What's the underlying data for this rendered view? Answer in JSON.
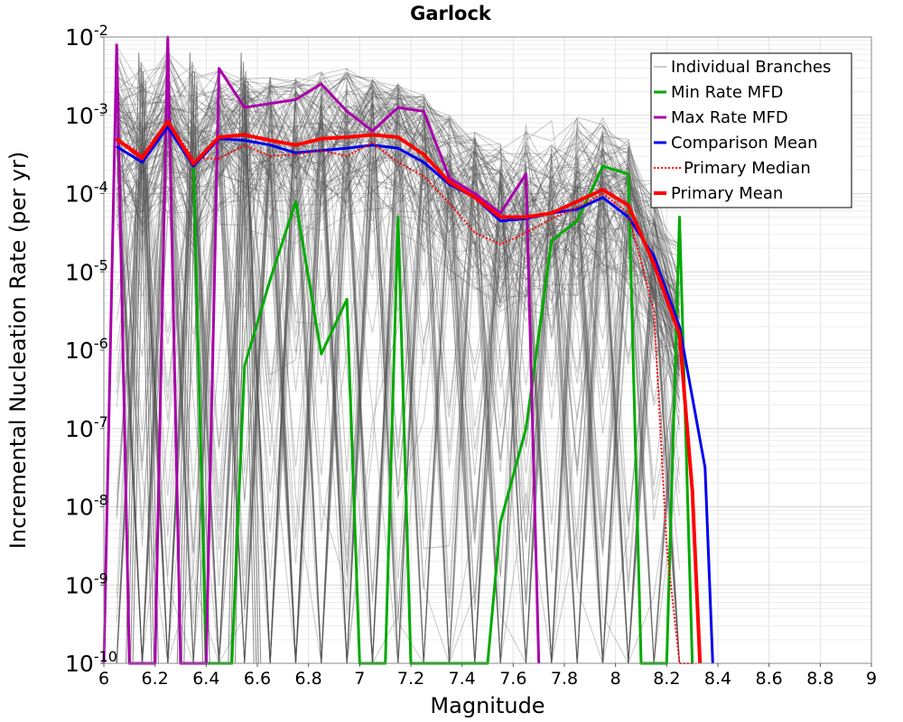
{
  "chart_data": {
    "type": "line",
    "title": "Garlock",
    "xlabel": "Magnitude",
    "ylabel": "Incremental Nucleation Rate (per yr)",
    "xlim": [
      6,
      9
    ],
    "ylim_log10": [
      -10,
      -2
    ],
    "yscale": "log",
    "grid": true,
    "legend_position": "top-right",
    "x_ticks": [
      "6",
      "6.2",
      "6.4",
      "6.6",
      "6.8",
      "7",
      "7.2",
      "7.4",
      "7.6",
      "7.8",
      "8",
      "8.2",
      "8.4",
      "8.6",
      "8.8",
      "9"
    ],
    "y_ticks": [
      {
        "base": "10",
        "exp": "-10"
      },
      {
        "base": "10",
        "exp": "-9"
      },
      {
        "base": "10",
        "exp": "-8"
      },
      {
        "base": "10",
        "exp": "-7"
      },
      {
        "base": "10",
        "exp": "-6"
      },
      {
        "base": "10",
        "exp": "-5"
      },
      {
        "base": "10",
        "exp": "-4"
      },
      {
        "base": "10",
        "exp": "-3"
      },
      {
        "base": "10",
        "exp": "-2"
      }
    ],
    "series": [
      {
        "name": "Individual Branches",
        "color": "#555555",
        "style": "thin-gray-bundle",
        "x": [
          6.05,
          6.15,
          6.25,
          6.35,
          6.45,
          6.55,
          6.65,
          6.75,
          6.85,
          6.95,
          7.05,
          7.15,
          7.25,
          7.35,
          7.45,
          7.55,
          7.65,
          7.75,
          7.85,
          7.95,
          8.05,
          8.15,
          8.25
        ],
        "y_log10_envelope_low": [
          -10,
          -10,
          -10,
          -10,
          -10,
          -10,
          -10,
          -10,
          -10,
          -10,
          -10,
          -10,
          -10,
          -10,
          -10,
          -10,
          -10,
          -10,
          -10,
          -10,
          -10,
          -10,
          -10
        ],
        "y_log10_envelope_high": [
          -2.1,
          -2.1,
          -2.1,
          -2.3,
          -2.4,
          -2.5,
          -2.5,
          -2.5,
          -2.4,
          -2.4,
          -2.5,
          -2.6,
          -2.7,
          -3.0,
          -3.2,
          -3.3,
          -3.1,
          -3.0,
          -3.0,
          -3.0,
          -3.3,
          -3.8,
          -4.3
        ]
      },
      {
        "name": "Min Rate MFD",
        "color": "#00aa00",
        "x": [
          6.35,
          6.4,
          6.45,
          6.5,
          6.55,
          6.65,
          6.75,
          6.85,
          6.95,
          7.0,
          7.05,
          7.1,
          7.15,
          7.2,
          7.25,
          7.4,
          7.5,
          7.55,
          7.65,
          7.75,
          7.85,
          7.95,
          8.05,
          8.1,
          8.15,
          8.2,
          8.25,
          8.3
        ],
        "y_log10": [
          -3.6,
          -10,
          -10,
          -10,
          -6.2,
          -5.1,
          -4.1,
          -6.05,
          -5.35,
          -10,
          -10,
          -10,
          -4.3,
          -10,
          -10,
          -10,
          -10,
          -8.2,
          -7.0,
          -4.6,
          -4.35,
          -3.65,
          -3.75,
          -10,
          -10,
          -10,
          -4.3,
          -10
        ]
      },
      {
        "name": "Max Rate MFD",
        "color": "#aa00aa",
        "x": [
          6.0,
          6.05,
          6.1,
          6.15,
          6.2,
          6.25,
          6.3,
          6.35,
          6.4,
          6.45,
          6.55,
          6.65,
          6.75,
          6.85,
          6.95,
          7.05,
          7.15,
          7.25,
          7.35,
          7.45,
          7.55,
          7.65,
          7.7
        ],
        "y_log10": [
          -10,
          -2.1,
          -10,
          -10,
          -10,
          -2.0,
          -10,
          -10,
          -10,
          -2.4,
          -2.9,
          -2.85,
          -2.8,
          -2.6,
          -2.95,
          -3.2,
          -2.9,
          -2.95,
          -3.8,
          -4.0,
          -4.25,
          -3.75,
          -10
        ]
      },
      {
        "name": "Comparison Mean",
        "color": "#0000ee",
        "x": [
          6.05,
          6.15,
          6.25,
          6.35,
          6.45,
          6.55,
          6.65,
          6.75,
          6.85,
          6.95,
          7.05,
          7.15,
          7.25,
          7.35,
          7.45,
          7.55,
          7.65,
          7.75,
          7.85,
          7.95,
          8.05,
          8.15,
          8.25,
          8.35,
          8.38
        ],
        "y_log10": [
          -3.4,
          -3.6,
          -3.15,
          -3.65,
          -3.3,
          -3.32,
          -3.38,
          -3.48,
          -3.45,
          -3.42,
          -3.38,
          -3.42,
          -3.6,
          -3.88,
          -4.05,
          -4.35,
          -4.32,
          -4.25,
          -4.2,
          -4.05,
          -4.3,
          -4.8,
          -5.7,
          -7.5,
          -10
        ]
      },
      {
        "name": "Primary Median",
        "color": "#ff0000",
        "style": "dotted",
        "x": [
          6.05,
          6.15,
          6.25,
          6.35,
          6.45,
          6.55,
          6.65,
          6.75,
          6.85,
          6.95,
          7.05,
          7.15,
          7.25,
          7.35,
          7.45,
          7.55,
          7.65,
          7.75,
          7.85,
          7.95,
          8.05,
          8.15,
          8.2,
          8.25,
          8.3
        ],
        "y_log10": [
          -3.3,
          -3.5,
          -3.08,
          -3.55,
          -3.55,
          -3.38,
          -3.52,
          -3.5,
          -3.45,
          -3.52,
          -3.35,
          -3.6,
          -3.78,
          -4.12,
          -4.5,
          -4.65,
          -4.5,
          -4.32,
          -4.18,
          -4.0,
          -4.25,
          -5.5,
          -8.5,
          -10,
          -10
        ]
      },
      {
        "name": "Primary Mean",
        "color": "#ff0000",
        "x": [
          6.05,
          6.15,
          6.25,
          6.35,
          6.45,
          6.55,
          6.65,
          6.75,
          6.85,
          6.95,
          7.05,
          7.15,
          7.25,
          7.35,
          7.45,
          7.55,
          7.65,
          7.75,
          7.85,
          7.95,
          8.05,
          8.15,
          8.25,
          8.3,
          8.33
        ],
        "y_log10": [
          -3.3,
          -3.55,
          -3.08,
          -3.62,
          -3.28,
          -3.25,
          -3.32,
          -3.38,
          -3.3,
          -3.28,
          -3.25,
          -3.28,
          -3.5,
          -3.85,
          -4.05,
          -4.3,
          -4.3,
          -4.25,
          -4.1,
          -3.95,
          -4.15,
          -4.9,
          -5.8,
          -7.8,
          -10
        ]
      }
    ]
  }
}
